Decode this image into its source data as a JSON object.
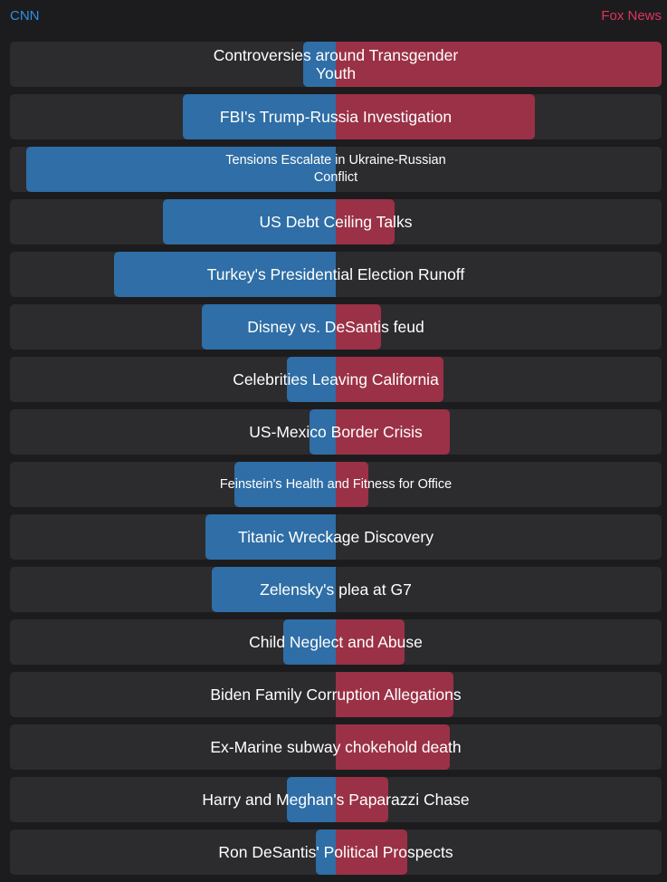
{
  "header": {
    "left_source": "CNN",
    "right_source": "Fox News"
  },
  "colors": {
    "left": "#2f6ea6",
    "right": "#9b3146",
    "row_bg": "#2c2c2e",
    "cnn_text": "#2e8fe6",
    "fox_text": "#e0335d"
  },
  "chart_data": {
    "type": "bar",
    "orientation": "horizontal-diverging",
    "value_unit": "percent of half-width",
    "series": [
      {
        "name": "CNN",
        "values": [
          10,
          47,
          95,
          53,
          68,
          41,
          15,
          8,
          31,
          40,
          38,
          16,
          0,
          0,
          15,
          6
        ]
      },
      {
        "name": "Fox News",
        "values": [
          100,
          61,
          0,
          18,
          0,
          14,
          33,
          35,
          10,
          0,
          0,
          21,
          36,
          35,
          16,
          22
        ]
      }
    ],
    "categories": [
      "Controversies around Transgender Youth",
      "FBI's Trump-Russia Investigation",
      "Tensions Escalate in Ukraine-Russian Conflict",
      "US Debt Ceiling Talks",
      "Turkey's Presidential Election Runoff",
      "Disney vs. DeSantis feud",
      "Celebrities Leaving California",
      "US-Mexico Border Crisis",
      "Feinstein's Health and Fitness for Office",
      "Titanic Wreckage Discovery",
      "Zelensky's plea at G7",
      "Child Neglect and Abuse",
      "Biden Family Corruption Allegations",
      "Ex-Marine subway chokehold death",
      "Harry and Meghan's Paparazzi Chase",
      "Ron DeSantis' Political Prospects"
    ]
  }
}
